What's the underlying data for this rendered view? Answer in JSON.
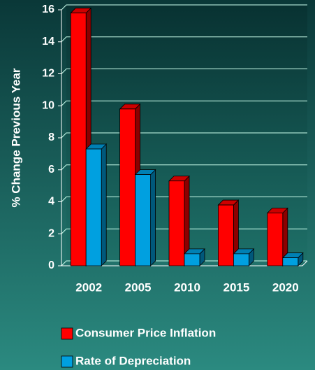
{
  "chart_data": {
    "type": "bar3d",
    "y_label": "% Change Previous Year",
    "categories": [
      "2002",
      "2005",
      "2010",
      "2015",
      "2020"
    ],
    "series": [
      {
        "name": "Consumer Price Inflation",
        "color": "#ff0000",
        "values": [
          15.8,
          9.8,
          5.3,
          3.8,
          3.3
        ]
      },
      {
        "name": "Rate of Depreciation",
        "color": "#00a0e0",
        "values": [
          7.3,
          5.7,
          0.75,
          0.75,
          0.5
        ]
      }
    ],
    "ylim": [
      0,
      16
    ],
    "yticks": [
      0,
      2,
      4,
      6,
      8,
      10,
      12,
      14,
      16
    ],
    "grid": true,
    "legend": "bottom"
  }
}
